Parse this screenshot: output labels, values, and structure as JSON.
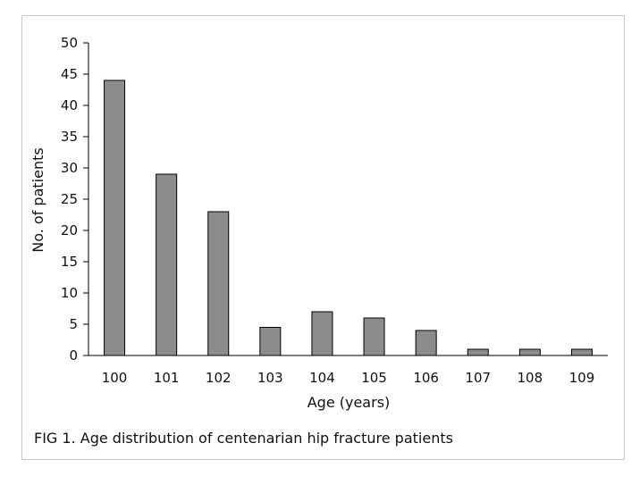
{
  "caption": "FIG 1. Age distribution of centenarian hip fracture patients",
  "chart_data": {
    "type": "bar",
    "title": "",
    "xlabel": "Age (years)",
    "ylabel": "No. of patients",
    "categories": [
      "100",
      "101",
      "102",
      "103",
      "104",
      "105",
      "106",
      "107",
      "108",
      "109"
    ],
    "values": [
      44,
      29,
      23,
      4.5,
      7,
      6,
      4,
      1,
      1,
      1
    ],
    "ylim": [
      0,
      50
    ],
    "yticks": [
      "0",
      "5",
      "10",
      "15",
      "20",
      "25",
      "30",
      "35",
      "40",
      "45",
      "50"
    ],
    "grid": false,
    "bar_color": "#8c8c8c",
    "bar_edge_color": "#000000"
  }
}
